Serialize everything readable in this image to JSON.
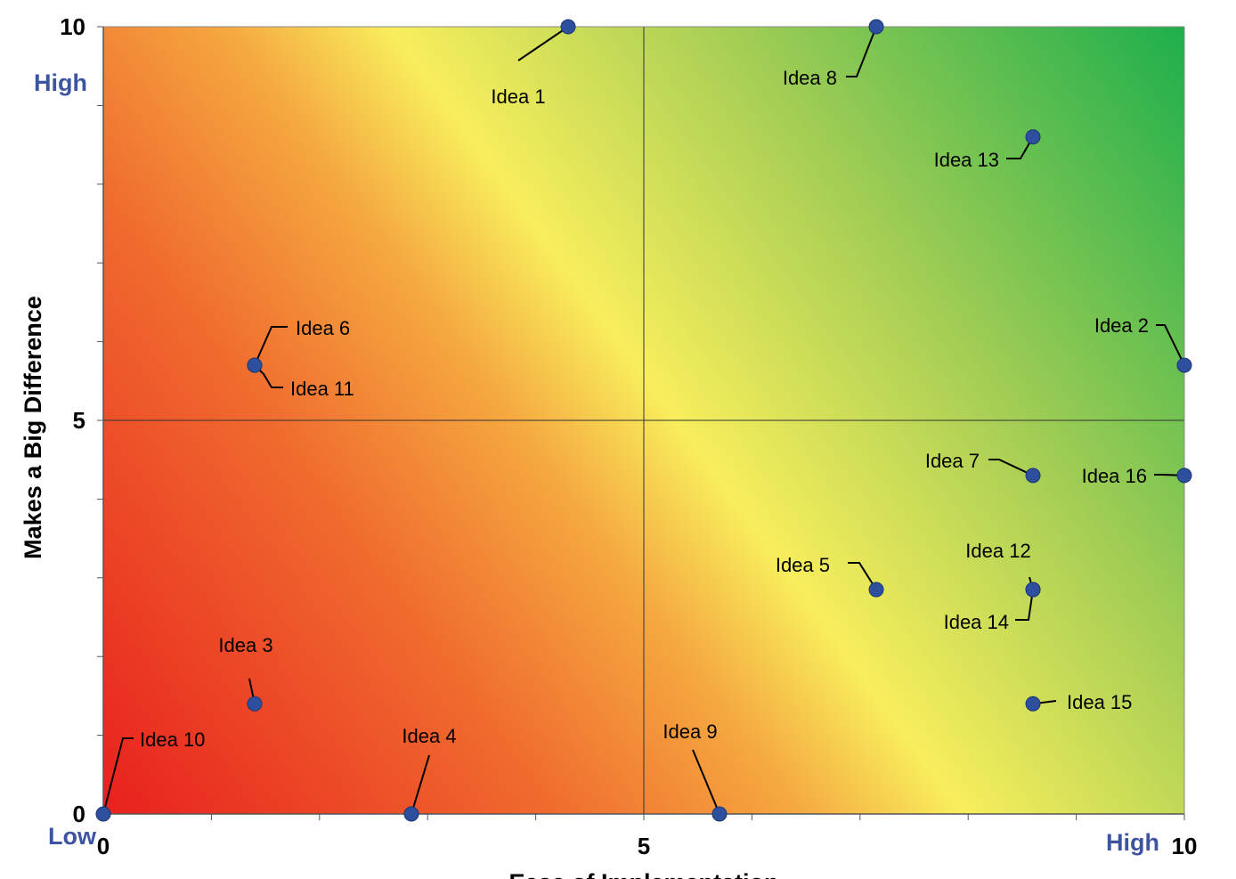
{
  "chart_data": {
    "type": "scatter",
    "xlabel": "Ease of Implementation",
    "ylabel": "Makes a Big Difference",
    "xlim": [
      0,
      10
    ],
    "ylim": [
      0,
      10
    ],
    "x_ticks": [
      "0",
      "5",
      "10"
    ],
    "y_ticks": [
      "0",
      "5",
      "10"
    ],
    "quadrant_lines": {
      "x": 5,
      "y": 5
    },
    "background": "diagonal gradient red (low/low) to yellow to green (high/high)",
    "grid": false,
    "legend": "none",
    "corner_labels": {
      "y_high": "High",
      "x_low": "Low",
      "x_high": "High"
    },
    "colors": {
      "marker": "#2E4F9E",
      "corner_label": "#3D55A0",
      "gradient_red": "#E8201E",
      "gradient_orange": "#F39A3C",
      "gradient_yellow": "#F8EE5C",
      "gradient_lightgreen": "#A6CE55",
      "gradient_green": "#1DAF4C"
    },
    "points": [
      {
        "label": "Idea 1",
        "x": 4.3,
        "y": 10.0
      },
      {
        "label": "Idea 2",
        "x": 10.0,
        "y": 5.7
      },
      {
        "label": "Idea 3",
        "x": 1.4,
        "y": 1.4
      },
      {
        "label": "Idea 4",
        "x": 2.85,
        "y": 0.0
      },
      {
        "label": "Idea 5",
        "x": 7.15,
        "y": 2.85
      },
      {
        "label": "Idea 6",
        "x": 1.4,
        "y": 5.7
      },
      {
        "label": "Idea 7",
        "x": 8.6,
        "y": 4.3
      },
      {
        "label": "Idea 8",
        "x": 7.15,
        "y": 10.0
      },
      {
        "label": "Idea 9",
        "x": 5.7,
        "y": 0.0
      },
      {
        "label": "Idea 10",
        "x": 0.0,
        "y": 0.0
      },
      {
        "label": "Idea 11",
        "x": 1.4,
        "y": 5.7
      },
      {
        "label": "Idea 12",
        "x": 8.6,
        "y": 2.85
      },
      {
        "label": "Idea 13",
        "x": 8.6,
        "y": 8.6
      },
      {
        "label": "Idea 14",
        "x": 8.6,
        "y": 2.85
      },
      {
        "label": "Idea 15",
        "x": 8.6,
        "y": 1.4
      },
      {
        "label": "Idea 16",
        "x": 10.0,
        "y": 4.3
      }
    ]
  }
}
